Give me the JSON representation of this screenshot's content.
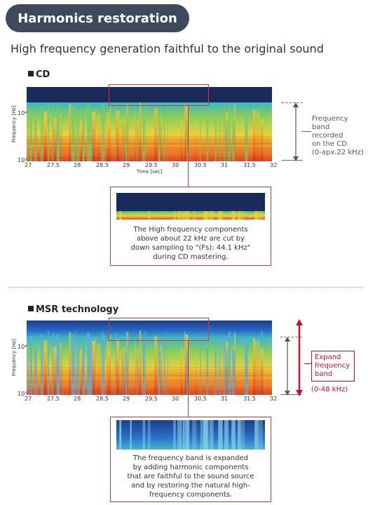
{
  "header": {
    "title": "Harmonics restoration",
    "subtitle": "High frequency generation faithful to the original sound"
  },
  "cd": {
    "heading": "CD",
    "ylabel": "Frequency [Hz]",
    "y_tick_top": "10⁴",
    "y_tick_bottom": "10³",
    "xlabel": "Time [sec]",
    "x_ticks": [
      "27",
      "27.5",
      "28",
      "28.5",
      "29",
      "29.5",
      "30",
      "30.5",
      "31",
      "31.5",
      "32"
    ],
    "band_note": [
      "Frequency",
      "band",
      "recorded",
      "on the CD",
      "(0-apx.22 kHz)"
    ],
    "info": [
      "The High frequency components",
      "above about 22 kHz are cut by",
      "down sampling to \"(Fs): 44.1 kHz\"",
      "during CD mastering."
    ]
  },
  "msr": {
    "heading": "MSR technology",
    "ylabel": "Frequency [Hz]",
    "y_tick_top": "10⁴",
    "y_tick_bottom": "10³",
    "x_ticks": [
      "27",
      "27.5",
      "28",
      "28.5",
      "29",
      "29.5",
      "30",
      "30.5",
      "31",
      "31.5",
      "32"
    ],
    "band_note": [
      "Expand",
      "frequency",
      "band"
    ],
    "band_range": "(0-48 kHz)",
    "info": [
      "The frequency band is expanded",
      "by adding harmonic components",
      "that are faithful to the sound source",
      "and by restoring the natural high-",
      "frequency components."
    ]
  },
  "colors": {
    "pill": "#3e4a5c",
    "accent_red": "#d33333",
    "navy": "#1a2a5a"
  }
}
